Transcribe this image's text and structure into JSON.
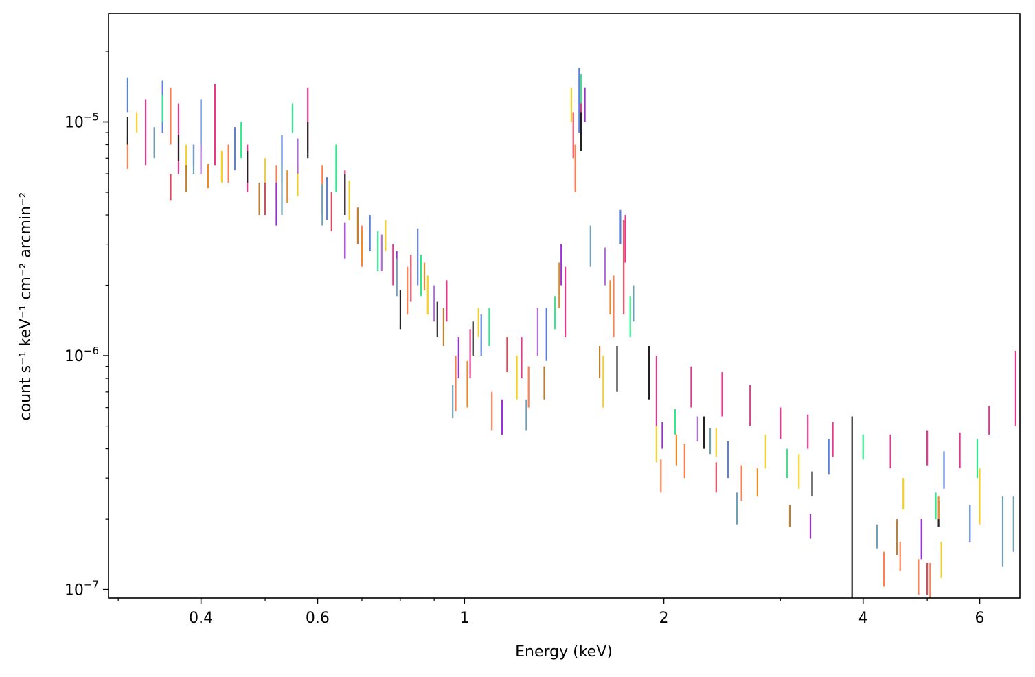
{
  "chart_data": {
    "type": "scatter",
    "style": "vertical error bars (y-ranges) per energy bin, many overlaid spectra in distinct colors",
    "xlabel": "Energy (keV)",
    "ylabel": "count s⁻¹ keV⁻¹ cm⁻² arcmin⁻²",
    "x_scale": "log",
    "y_scale": "log",
    "xlim": [
      0.29,
      6.9
    ],
    "ylim": [
      9.2e-08,
      2.9e-05
    ],
    "x_ticks": [
      {
        "value": 0.4,
        "label": "0.4"
      },
      {
        "value": 0.6,
        "label": "0.6"
      },
      {
        "value": 1,
        "label": "1"
      },
      {
        "value": 2,
        "label": "2"
      },
      {
        "value": 4,
        "label": "4"
      },
      {
        "value": 6,
        "label": "6"
      }
    ],
    "y_ticks": [
      {
        "value": 1e-07,
        "base": "10",
        "exp": "−7"
      },
      {
        "value": 1e-06,
        "base": "10",
        "exp": "−6"
      },
      {
        "value": 1e-05,
        "base": "10",
        "exp": "−5"
      }
    ],
    "grid": false,
    "legend": "none",
    "colors": [
      "#e6378e",
      "#5b7fdc",
      "#ff7f50",
      "#f5d127",
      "#2eea8a",
      "#222222",
      "#9b30d9",
      "#6fa0b8",
      "#f08a24",
      "#e0485a",
      "#c08030",
      "#b070d8"
    ],
    "series": [
      {
        "color": "#e6378e",
        "points": [
          [
            0.33,
            6.5e-06,
            1.25e-05
          ],
          [
            0.37,
            6e-06,
            1.2e-05
          ],
          [
            0.42,
            6.5e-06,
            1.45e-05
          ],
          [
            0.47,
            5e-06,
            8e-06
          ],
          [
            0.58,
            7.5e-06,
            1.4e-05
          ],
          [
            0.66,
            4e-06,
            6.2e-06
          ],
          [
            0.78,
            2e-06,
            3e-06
          ],
          [
            0.94,
            1.4e-06,
            2.1e-06
          ],
          [
            1.02,
            8e-07,
            1.3e-06
          ],
          [
            1.22,
            8e-07,
            1.2e-06
          ],
          [
            1.42,
            1.2e-06,
            2.4e-06
          ],
          [
            1.5,
            9e-06,
            1.5e-05
          ],
          [
            1.75,
            2.5e-06,
            4e-06
          ],
          [
            1.95,
            5e-07,
            1e-06
          ],
          [
            2.2,
            6e-07,
            9e-07
          ],
          [
            2.45,
            5.5e-07,
            8.5e-07
          ],
          [
            2.7,
            5e-07,
            7.5e-07
          ],
          [
            3.0,
            4.4e-07,
            6e-07
          ],
          [
            3.3,
            4e-07,
            5.6e-07
          ],
          [
            3.6,
            3.7e-07,
            5.2e-07
          ],
          [
            4.4,
            3.3e-07,
            4.6e-07
          ],
          [
            5.0,
            3.4e-07,
            4.8e-07
          ],
          [
            5.6,
            3.3e-07,
            4.7e-07
          ],
          [
            6.2,
            4.6e-07,
            6.1e-07
          ],
          [
            6.8,
            5e-07,
            1.05e-06
          ]
        ]
      },
      {
        "color": "#5b7fdc",
        "points": [
          [
            0.31,
            1.1e-05,
            1.55e-05
          ],
          [
            0.35,
            9e-06,
            1.5e-05
          ],
          [
            0.4,
            7.5e-06,
            1.25e-05
          ],
          [
            0.45,
            6.2e-06,
            9.5e-06
          ],
          [
            0.53,
            5.5e-06,
            8.8e-06
          ],
          [
            0.62,
            3.8e-06,
            5.8e-06
          ],
          [
            0.72,
            2.8e-06,
            4e-06
          ],
          [
            0.85,
            2e-06,
            3.5e-06
          ],
          [
            1.06,
            1e-06,
            1.5e-06
          ],
          [
            1.33,
            9.5e-07,
            1.6e-06
          ],
          [
            1.49,
            9e-06,
            1.7e-05
          ],
          [
            1.72,
            3e-06,
            4.2e-06
          ],
          [
            2.5,
            3e-07,
            4.3e-07
          ],
          [
            3.55,
            3.1e-07,
            4.4e-07
          ],
          [
            5.3,
            2.7e-07,
            3.9e-07
          ],
          [
            5.8,
            1.6e-07,
            2.3e-07
          ]
        ]
      },
      {
        "color": "#ff7f50",
        "points": [
          [
            0.31,
            6.3e-06,
            8.6e-06
          ],
          [
            0.36,
            8e-06,
            1.4e-05
          ],
          [
            0.44,
            5.5e-06,
            8e-06
          ],
          [
            0.52,
            4.6e-06,
            6.5e-06
          ],
          [
            0.61,
            4e-06,
            6.5e-06
          ],
          [
            0.7,
            2.4e-06,
            3.6e-06
          ],
          [
            0.82,
            1.5e-06,
            2.4e-06
          ],
          [
            0.97,
            5.8e-07,
            1e-06
          ],
          [
            1.1,
            4.8e-07,
            7e-07
          ],
          [
            1.25,
            6e-07,
            9e-07
          ],
          [
            1.47,
            5e-06,
            8e-06
          ],
          [
            1.68,
            1.2e-06,
            2.2e-06
          ],
          [
            1.98,
            2.6e-07,
            3.6e-07
          ],
          [
            2.15,
            3e-07,
            4.2e-07
          ],
          [
            2.62,
            2.4e-07,
            3.4e-07
          ],
          [
            4.3,
            1.03e-07,
            1.45e-07
          ],
          [
            4.55,
            1.2e-07,
            1.6e-07
          ],
          [
            4.85,
            9.5e-08,
            1.35e-07
          ],
          [
            5.05,
            9.2e-08,
            1.3e-07
          ]
        ]
      },
      {
        "color": "#f5d127",
        "points": [
          [
            0.32,
            9e-06,
            1.1e-05
          ],
          [
            0.38,
            6e-06,
            8e-06
          ],
          [
            0.43,
            5.5e-06,
            7.5e-06
          ],
          [
            0.5,
            5e-06,
            7e-06
          ],
          [
            0.56,
            4.8e-06,
            6.5e-06
          ],
          [
            0.67,
            3.8e-06,
            5.6e-06
          ],
          [
            0.76,
            2.8e-06,
            3.8e-06
          ],
          [
            0.88,
            1.5e-06,
            2.2e-06
          ],
          [
            1.05,
            1.2e-06,
            1.6e-06
          ],
          [
            1.2,
            6.5e-07,
            1e-06
          ],
          [
            1.45,
            1e-05,
            1.4e-05
          ],
          [
            1.62,
            6e-07,
            1e-06
          ],
          [
            1.95,
            3.5e-07,
            5e-07
          ],
          [
            2.4,
            3.7e-07,
            4.9e-07
          ],
          [
            2.85,
            3.3e-07,
            4.6e-07
          ],
          [
            3.2,
            2.7e-07,
            3.8e-07
          ],
          [
            4.6,
            2.2e-07,
            3e-07
          ],
          [
            5.25,
            1.12e-07,
            1.6e-07
          ],
          [
            6.0,
            1.9e-07,
            3.3e-07
          ]
        ]
      },
      {
        "color": "#2eea8a",
        "points": [
          [
            0.35,
            1e-05,
            1.3e-05
          ],
          [
            0.46,
            7e-06,
            1e-05
          ],
          [
            0.55,
            9e-06,
            1.2e-05
          ],
          [
            0.64,
            5e-06,
            8e-06
          ],
          [
            0.74,
            2.3e-06,
            3.4e-06
          ],
          [
            0.86,
            1.8e-06,
            2.7e-06
          ],
          [
            1.09,
            1.1e-06,
            1.6e-06
          ],
          [
            1.37,
            1.3e-06,
            1.8e-06
          ],
          [
            1.5,
            1.2e-05,
            1.6e-05
          ],
          [
            1.78,
            1.2e-06,
            1.8e-06
          ],
          [
            2.08,
            4.6e-07,
            5.9e-07
          ],
          [
            3.07,
            3e-07,
            4e-07
          ],
          [
            4.0,
            3.6e-07,
            4.6e-07
          ],
          [
            5.15,
            2e-07,
            2.6e-07
          ],
          [
            5.95,
            3e-07,
            4.4e-07
          ]
        ]
      },
      {
        "color": "#222222",
        "points": [
          [
            0.31,
            8e-06,
            1.05e-05
          ],
          [
            0.37,
            6.8e-06,
            8.8e-06
          ],
          [
            0.47,
            5.5e-06,
            7.5e-06
          ],
          [
            0.58,
            7e-06,
            1e-05
          ],
          [
            0.66,
            4e-06,
            6e-06
          ],
          [
            0.8,
            1.3e-06,
            1.9e-06
          ],
          [
            0.91,
            1.2e-06,
            1.7e-06
          ],
          [
            1.03,
            1e-06,
            1.4e-06
          ],
          [
            1.5,
            7.5e-06,
            1.1e-05
          ],
          [
            1.7,
            7e-07,
            1.1e-06
          ],
          [
            1.9,
            6.5e-07,
            1.1e-06
          ],
          [
            2.3,
            4e-07,
            5.5e-07
          ],
          [
            3.35,
            2.5e-07,
            3.2e-07
          ],
          [
            3.85,
            8e-08,
            5.5e-07
          ],
          [
            5.2,
            1.85e-07,
            2.4e-07
          ]
        ]
      },
      {
        "color": "#9b30d9",
        "points": [
          [
            0.39,
            6.5e-06,
            8e-06
          ],
          [
            0.52,
            3.6e-06,
            5.5e-06
          ],
          [
            0.66,
            2.6e-06,
            3.7e-06
          ],
          [
            0.79,
            1.8e-06,
            2.8e-06
          ],
          [
            0.98,
            8e-07,
            1.2e-06
          ],
          [
            1.14,
            4.6e-07,
            6.5e-07
          ],
          [
            1.4,
            2e-06,
            3e-06
          ],
          [
            1.52,
            1e-05,
            1.4e-05
          ],
          [
            1.99,
            4e-07,
            5.2e-07
          ],
          [
            3.33,
            1.65e-07,
            2.1e-07
          ],
          [
            4.9,
            1.35e-07,
            2e-07
          ]
        ]
      },
      {
        "color": "#6fa0b8",
        "points": [
          [
            0.34,
            7e-06,
            9.5e-06
          ],
          [
            0.39,
            6e-06,
            8e-06
          ],
          [
            0.53,
            4e-06,
            6.5e-06
          ],
          [
            0.61,
            3.6e-06,
            5.4e-06
          ],
          [
            0.79,
            1.8e-06,
            2.6e-06
          ],
          [
            0.96,
            5.4e-07,
            7.5e-07
          ],
          [
            1.24,
            4.8e-07,
            6.5e-07
          ],
          [
            1.55,
            2.4e-06,
            3.6e-06
          ],
          [
            1.8,
            1.4e-06,
            2e-06
          ],
          [
            2.35,
            3.8e-07,
            4.9e-07
          ],
          [
            2.58,
            1.9e-07,
            2.6e-07
          ],
          [
            4.2,
            1.5e-07,
            1.9e-07
          ],
          [
            6.5,
            1.25e-07,
            2.5e-07
          ],
          [
            6.75,
            1.45e-07,
            2.5e-07
          ]
        ]
      },
      {
        "color": "#f08a24",
        "points": [
          [
            0.41,
            5.2e-06,
            6.6e-06
          ],
          [
            0.54,
            4.5e-06,
            6.2e-06
          ],
          [
            0.7,
            2.5e-06,
            3.4e-06
          ],
          [
            0.87,
            1.9e-06,
            2.5e-06
          ],
          [
            1.01,
            6e-07,
            9.5e-07
          ],
          [
            1.39,
            1.6e-06,
            2.5e-06
          ],
          [
            1.66,
            1.5e-06,
            2.1e-06
          ],
          [
            2.09,
            3.4e-07,
            4.6e-07
          ],
          [
            2.77,
            2.5e-07,
            3.3e-07
          ],
          [
            5.2,
            2e-07,
            2.5e-07
          ]
        ]
      },
      {
        "color": "#e0485a",
        "points": [
          [
            0.36,
            4.6e-06,
            6e-06
          ],
          [
            0.5,
            4e-06,
            5.5e-06
          ],
          [
            0.63,
            3.4e-06,
            5e-06
          ],
          [
            0.83,
            1.7e-06,
            2.7e-06
          ],
          [
            1.16,
            8.5e-07,
            1.2e-06
          ],
          [
            1.46,
            7e-06,
            1.1e-05
          ],
          [
            1.74,
            1.5e-06,
            3.8e-06
          ],
          [
            2.4,
            2.6e-07,
            3.5e-07
          ],
          [
            5.0,
            9.5e-08,
            1.3e-07
          ]
        ]
      },
      {
        "color": "#c08030",
        "points": [
          [
            0.38,
            5e-06,
            6.5e-06
          ],
          [
            0.49,
            4e-06,
            5.5e-06
          ],
          [
            0.69,
            3e-06,
            4.3e-06
          ],
          [
            0.93,
            1.1e-06,
            1.6e-06
          ],
          [
            1.32,
            6.5e-07,
            9e-07
          ],
          [
            1.6,
            8e-07,
            1.1e-06
          ],
          [
            3.1,
            1.85e-07,
            2.3e-07
          ],
          [
            4.5,
            1.4e-07,
            2e-07
          ]
        ]
      },
      {
        "color": "#b070d8",
        "points": [
          [
            0.4,
            6e-06,
            8e-06
          ],
          [
            0.56,
            6e-06,
            8.5e-06
          ],
          [
            0.75,
            2.3e-06,
            3.3e-06
          ],
          [
            0.9,
            1.4e-06,
            2e-06
          ],
          [
            1.29,
            1e-06,
            1.6e-06
          ],
          [
            1.63,
            2e-06,
            2.9e-06
          ],
          [
            2.25,
            4.3e-07,
            5.5e-07
          ]
        ]
      }
    ]
  }
}
